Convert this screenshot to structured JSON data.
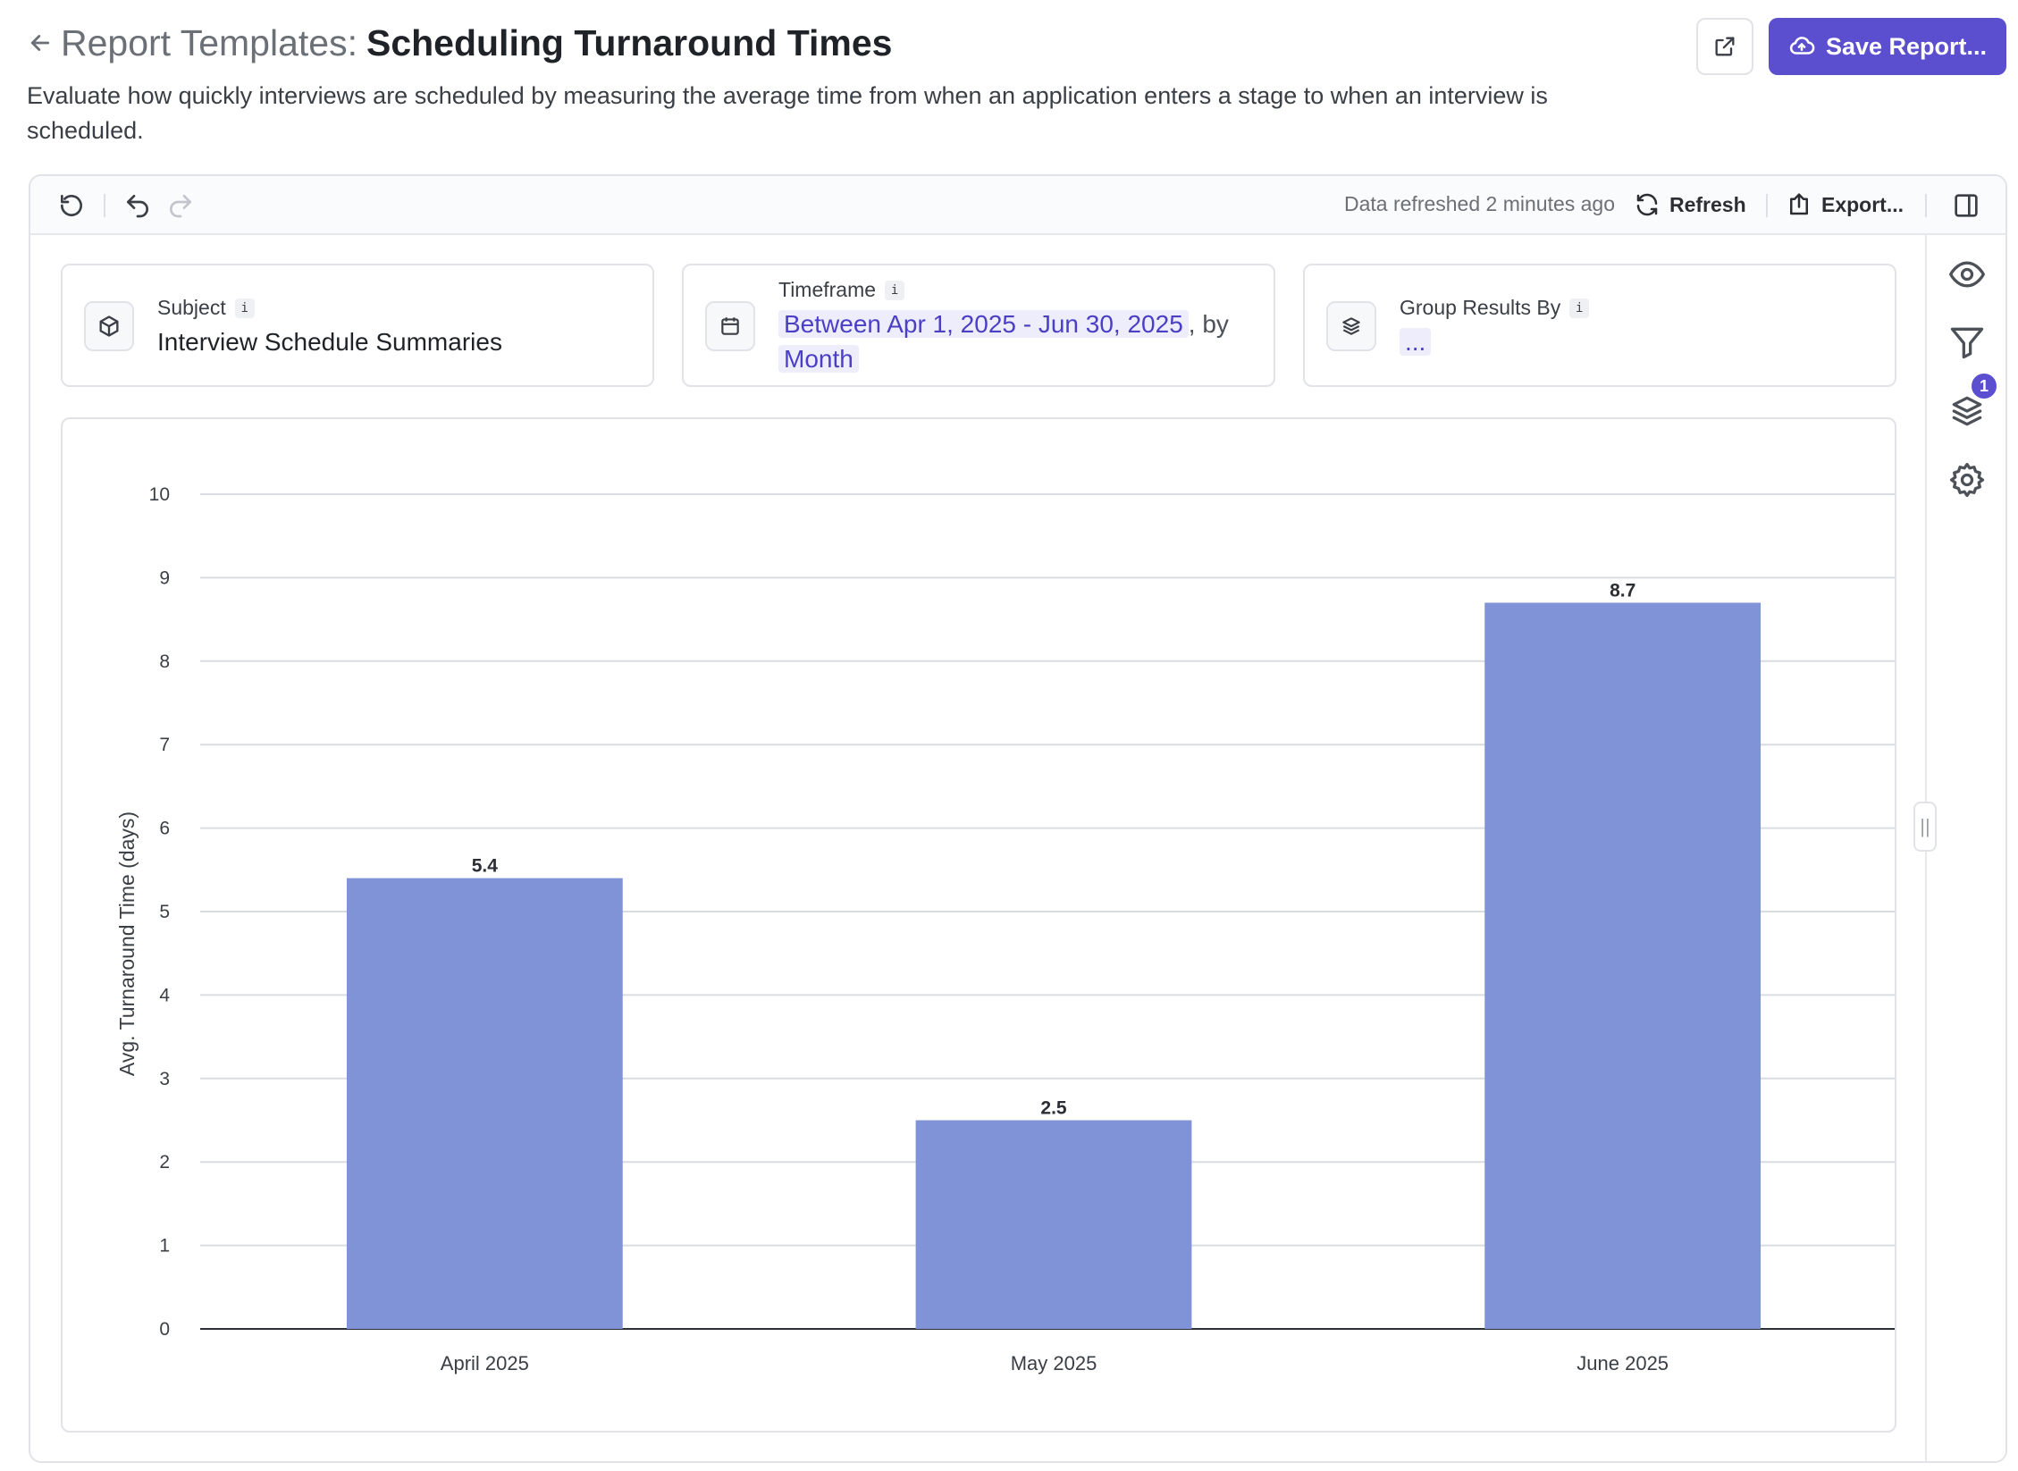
{
  "header": {
    "title_prefix": "Report Templates:",
    "title_name": "Scheduling Turnaround Times",
    "description": "Evaluate how quickly interviews are scheduled by measuring the average time from when an application enters a stage to when an interview is scheduled."
  },
  "actions": {
    "save_label": "Save Report..."
  },
  "toolbar": {
    "status": "Data refreshed 2 minutes ago",
    "refresh_label": "Refresh",
    "export_label": "Export..."
  },
  "cards": {
    "subject": {
      "label": "Subject",
      "value": "Interview Schedule Summaries"
    },
    "timeframe": {
      "label": "Timeframe",
      "range": "Between Apr 1, 2025 - Jun 30, 2025",
      "by": ", by",
      "granularity": "Month"
    },
    "group": {
      "label": "Group Results By",
      "value": "..."
    },
    "info_glyph": "i"
  },
  "side_rail": {
    "layers_badge": "1",
    "handle_glyph": "||"
  },
  "colors": {
    "accent": "#5b4fcf",
    "bar": "#7f93d6"
  },
  "chart_data": {
    "type": "bar",
    "categories": [
      "April 2025",
      "May 2025",
      "June 2025"
    ],
    "values": [
      5.4,
      2.5,
      8.7
    ],
    "value_labels": [
      "5.4",
      "2.5",
      "8.7"
    ],
    "title": "",
    "xlabel": "",
    "ylabel": "Avg. Turnaround Time (days)",
    "ylim": [
      0,
      10
    ],
    "yticks": [
      "0",
      "1",
      "2",
      "3",
      "4",
      "5",
      "6",
      "7",
      "8",
      "9",
      "10"
    ],
    "grid": true,
    "legend": "none"
  }
}
